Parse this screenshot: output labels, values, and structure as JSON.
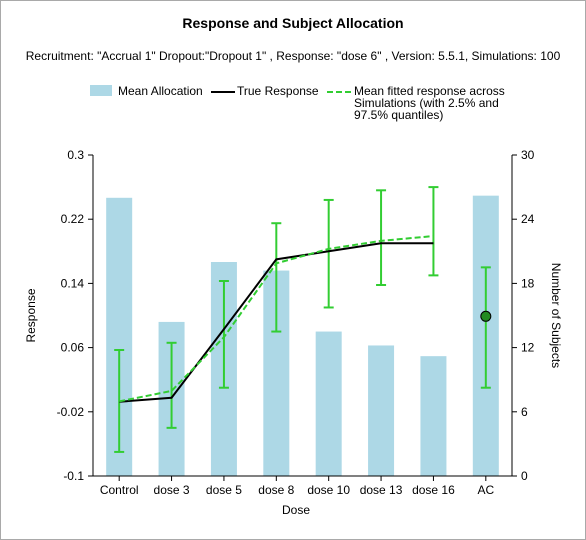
{
  "chart_data": {
    "type": "bar",
    "title": "Response and Subject Allocation",
    "subtitle": "Recruitment: \"Accrual 1\" Dropout:\"Dropout 1\" , Response: \"dose 6\" , Version: 5.5.1, Simulations: 100",
    "xlabel": "Dose",
    "ylabel": "Response",
    "y2label": "Number of Subjects",
    "categories": [
      "Control",
      "dose 3",
      "dose 5",
      "dose 8",
      "dose 10",
      "dose 13",
      "dose 16",
      "AC"
    ],
    "ylim": [
      -0.1,
      0.3
    ],
    "y2lim": [
      0,
      30
    ],
    "yticks": [
      "-0.1",
      "-0.02",
      "0.06",
      "0.14",
      "0.22",
      "0.3"
    ],
    "y2ticks": [
      "0",
      "6",
      "12",
      "18",
      "24",
      "30"
    ],
    "grid": false,
    "legend_position": "top",
    "legend": [
      "Mean Allocation",
      "True Response",
      "Mean fitted response across Simulations (with 2.5% and 97.5% quantiles)"
    ],
    "legend_lines": [
      "Mean fitted response across",
      "Simulations (with 2.5% and",
      "97.5% quantiles)"
    ],
    "colors": {
      "bars": "#add8e6",
      "true_response": "#000000",
      "fitted": "#32cd32",
      "errorbars": "#32cd32",
      "ac_marker": "#228b22"
    },
    "series": [
      {
        "name": "Mean Allocation",
        "type": "bar",
        "axis": "right",
        "values": [
          26,
          14.4,
          20,
          19.2,
          13.5,
          12.2,
          11.2,
          26.2
        ]
      },
      {
        "name": "True Response",
        "type": "line",
        "axis": "left",
        "values": [
          -0.0075,
          -0.0025,
          0.083,
          0.17,
          0.18,
          0.19,
          0.19,
          null
        ]
      },
      {
        "name": "Mean fitted response across Simulations (with 2.5% and 97.5% quantiles)",
        "type": "line-dashed",
        "axis": "left",
        "values": [
          -0.007,
          0.006,
          0.073,
          0.165,
          0.183,
          0.193,
          0.199,
          0.099
        ],
        "lower": [
          -0.07,
          -0.04,
          0.01,
          0.08,
          0.11,
          0.138,
          0.15,
          0.01
        ],
        "upper": [
          0.057,
          0.066,
          0.143,
          0.215,
          0.244,
          0.256,
          0.26,
          0.16
        ]
      }
    ]
  }
}
